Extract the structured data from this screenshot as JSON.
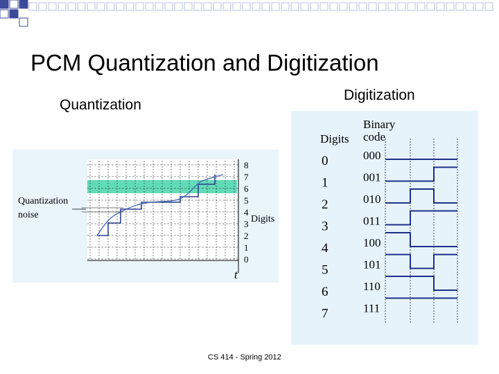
{
  "slide": {
    "title": "PCM Quantization and Digitization",
    "left_subtitle": "Quantization",
    "right_subtitle": "Digitization",
    "footer": "CS 414 - Spring 2012"
  },
  "quantization_figure": {
    "noise_label_line1": "Quantization",
    "noise_label_line2": "noise",
    "digits_label": "Digits",
    "time_label": "t",
    "levels": [
      "0",
      "1",
      "2",
      "3",
      "4",
      "5",
      "6",
      "7",
      "8"
    ],
    "band_color": "#2ecf9f",
    "signal_color": "#2a3d8f"
  },
  "digitization_figure": {
    "header_digits": "Digits",
    "header_binary_line1": "Binary",
    "header_binary_line2": "code",
    "rows": [
      {
        "digit": "0",
        "code": "000"
      },
      {
        "digit": "1",
        "code": "001"
      },
      {
        "digit": "2",
        "code": "010"
      },
      {
        "digit": "3",
        "code": "011"
      },
      {
        "digit": "4",
        "code": "100"
      },
      {
        "digit": "5",
        "code": "101"
      },
      {
        "digit": "6",
        "code": "110"
      },
      {
        "digit": "7",
        "code": "111"
      }
    ],
    "wave_color": "#1e2f8a",
    "panel_color": "#e6f3fa"
  },
  "decoration": {
    "square_color": "#3c4a9a",
    "bar_color": "#1f2a7a"
  }
}
